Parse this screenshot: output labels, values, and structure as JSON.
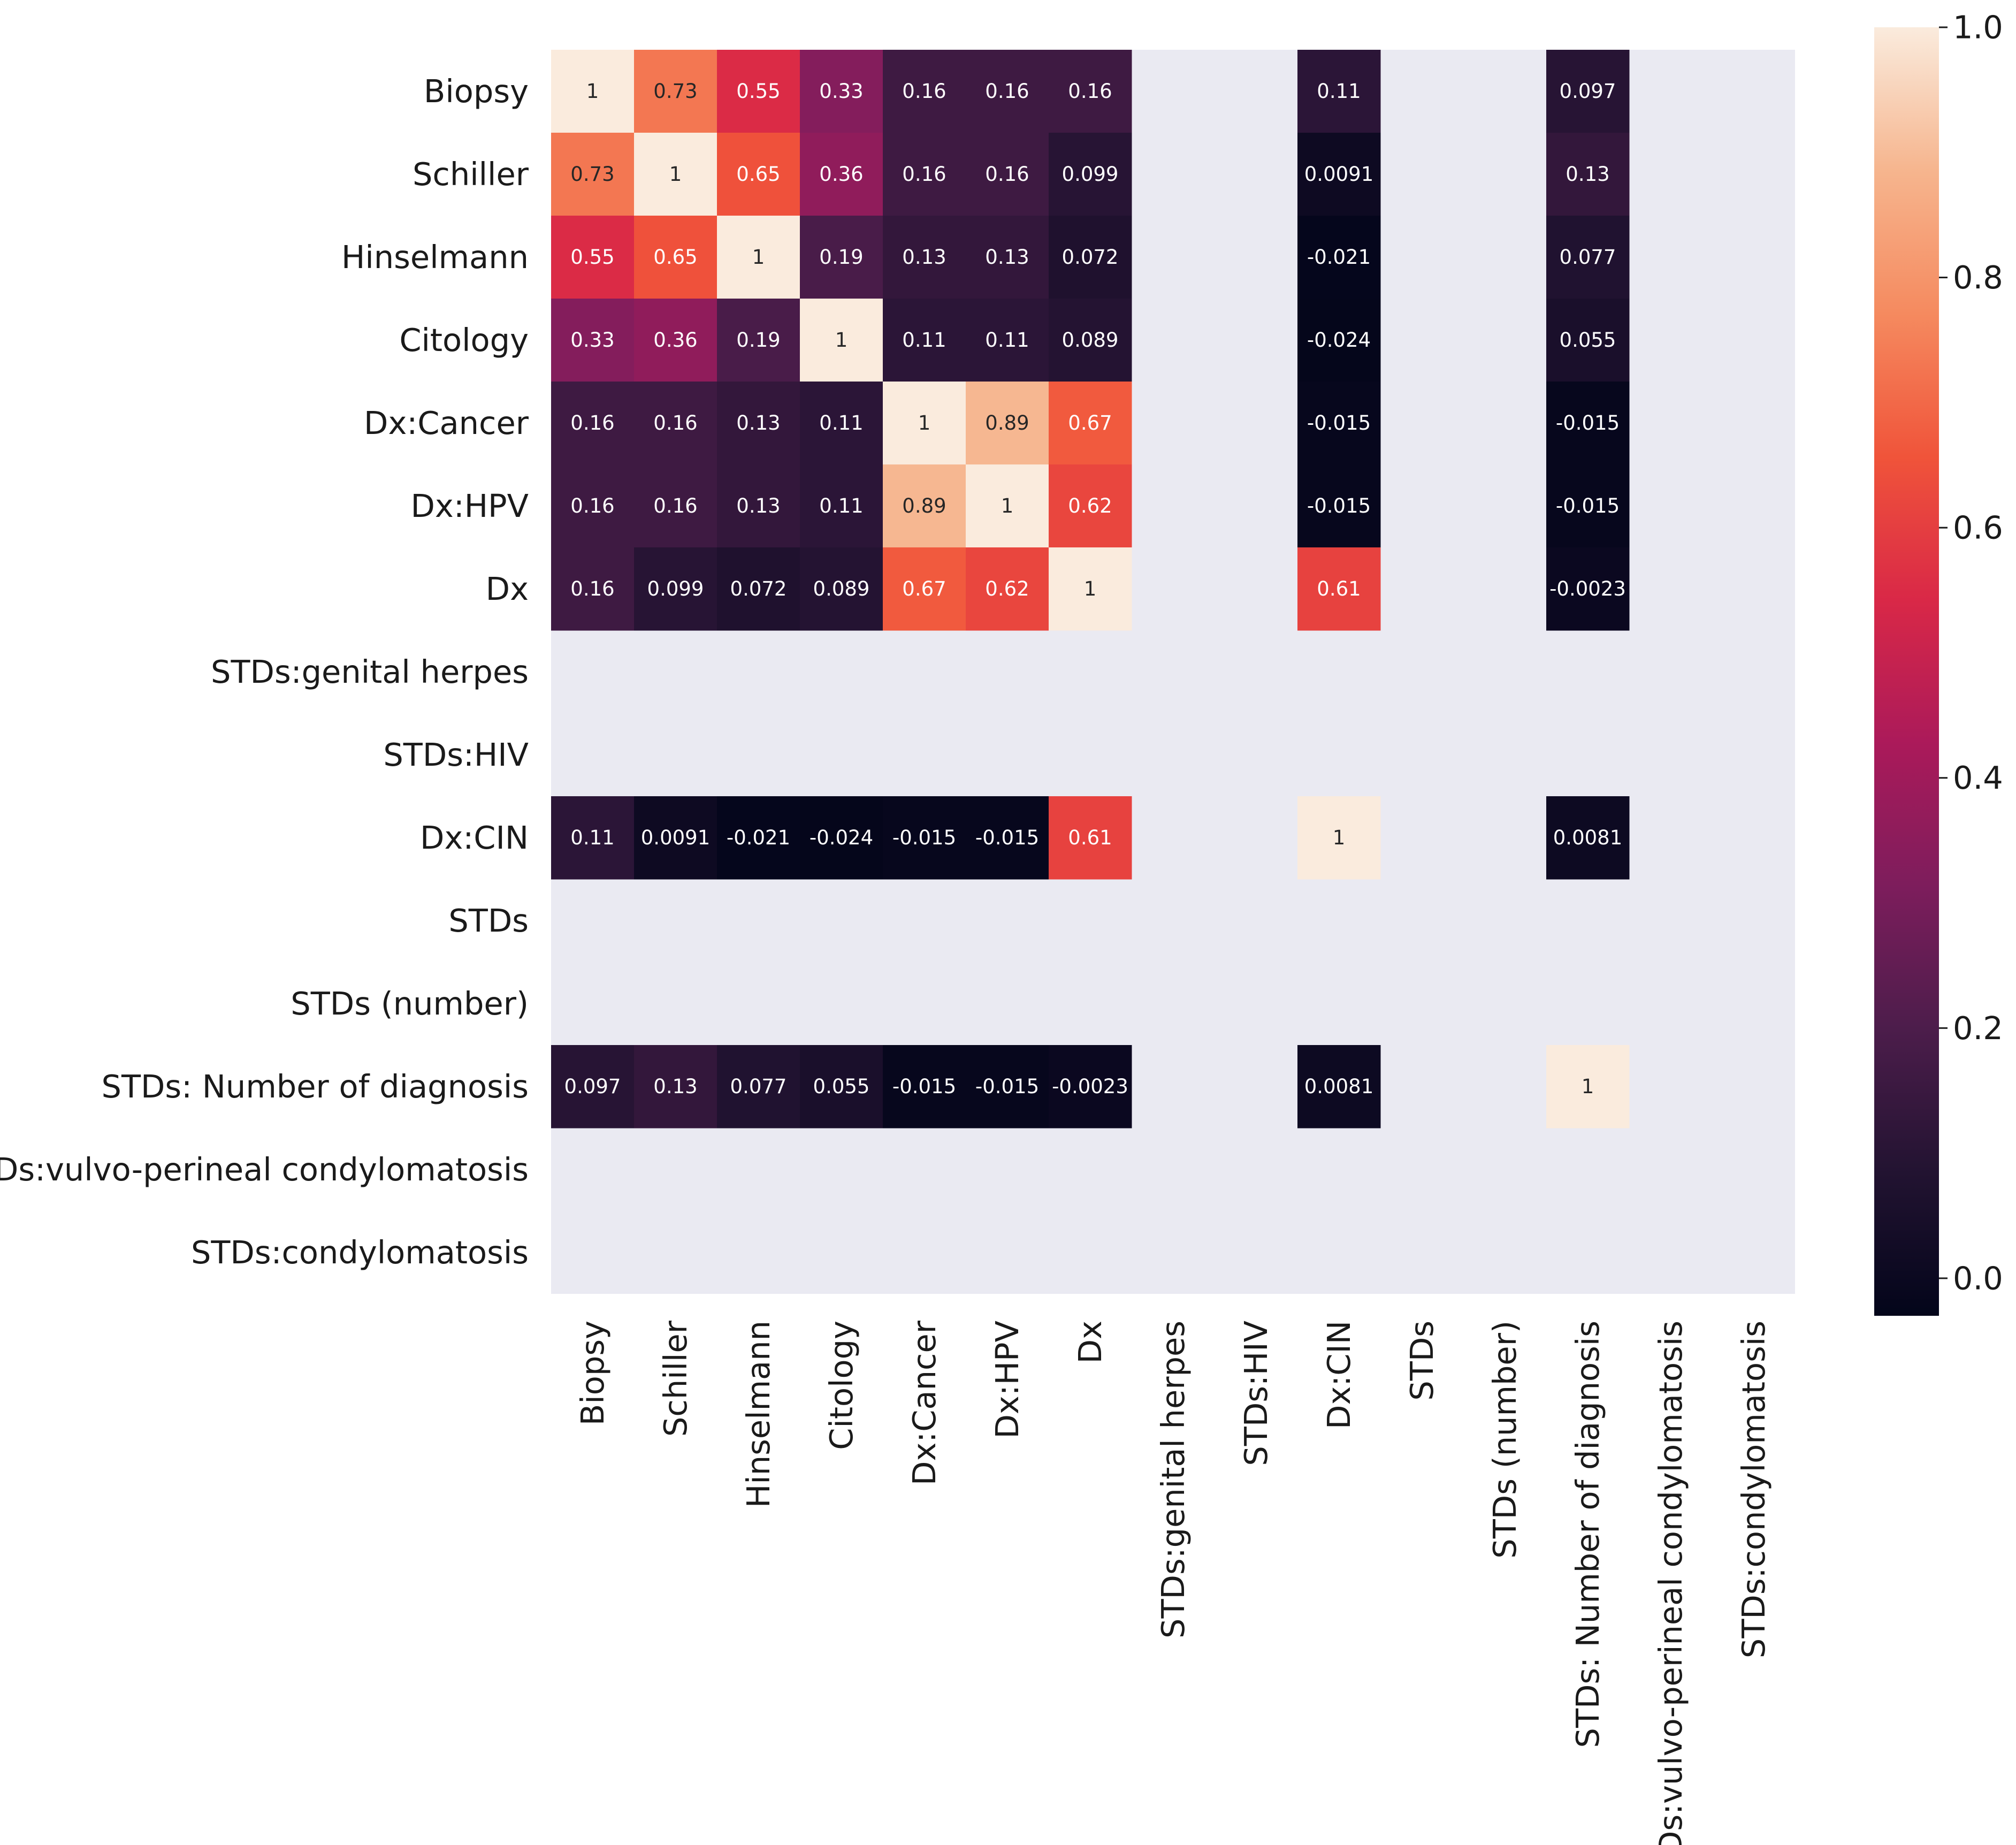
{
  "chart_data": {
    "type": "heatmap",
    "title": "",
    "xlabel": "",
    "ylabel": "",
    "labels": [
      "Biopsy",
      "Schiller",
      "Hinselmann",
      "Citology",
      "Dx:Cancer",
      "Dx:HPV",
      "Dx",
      "STDs:genital herpes",
      "STDs:HIV",
      "Dx:CIN",
      "STDs",
      "STDs (number)",
      "STDs: Number of diagnosis",
      "STDs:vulvo-perineal condylomatosis",
      "STDs:condylomatosis"
    ],
    "values": [
      [
        1,
        0.73,
        0.55,
        0.33,
        0.16,
        0.16,
        0.16,
        null,
        null,
        0.11,
        null,
        null,
        0.097,
        null,
        null
      ],
      [
        0.73,
        1,
        0.65,
        0.36,
        0.16,
        0.16,
        0.099,
        null,
        null,
        0.0091,
        null,
        null,
        0.13,
        null,
        null
      ],
      [
        0.55,
        0.65,
        1,
        0.19,
        0.13,
        0.13,
        0.072,
        null,
        null,
        -0.021,
        null,
        null,
        0.077,
        null,
        null
      ],
      [
        0.33,
        0.36,
        0.19,
        1,
        0.11,
        0.11,
        0.089,
        null,
        null,
        -0.024,
        null,
        null,
        0.055,
        null,
        null
      ],
      [
        0.16,
        0.16,
        0.13,
        0.11,
        1,
        0.89,
        0.67,
        null,
        null,
        -0.015,
        null,
        null,
        -0.015,
        null,
        null
      ],
      [
        0.16,
        0.16,
        0.13,
        0.11,
        0.89,
        1,
        0.62,
        null,
        null,
        -0.015,
        null,
        null,
        -0.015,
        null,
        null
      ],
      [
        0.16,
        0.099,
        0.072,
        0.089,
        0.67,
        0.62,
        1,
        null,
        null,
        0.61,
        null,
        null,
        -0.0023,
        null,
        null
      ],
      [
        null,
        null,
        null,
        null,
        null,
        null,
        null,
        null,
        null,
        null,
        null,
        null,
        null,
        null,
        null
      ],
      [
        null,
        null,
        null,
        null,
        null,
        null,
        null,
        null,
        null,
        null,
        null,
        null,
        null,
        null,
        null
      ],
      [
        0.11,
        0.0091,
        -0.021,
        -0.024,
        -0.015,
        -0.015,
        0.61,
        null,
        null,
        1,
        null,
        null,
        0.0081,
        null,
        null
      ],
      [
        null,
        null,
        null,
        null,
        null,
        null,
        null,
        null,
        null,
        null,
        null,
        null,
        null,
        null,
        null
      ],
      [
        null,
        null,
        null,
        null,
        null,
        null,
        null,
        null,
        null,
        null,
        null,
        null,
        null,
        null,
        null
      ],
      [
        0.097,
        0.13,
        0.077,
        0.055,
        -0.015,
        -0.015,
        -0.0023,
        null,
        null,
        0.0081,
        null,
        null,
        1,
        null,
        null
      ],
      [
        null,
        null,
        null,
        null,
        null,
        null,
        null,
        null,
        null,
        null,
        null,
        null,
        null,
        null,
        null
      ],
      [
        null,
        null,
        null,
        null,
        null,
        null,
        null,
        null,
        null,
        null,
        null,
        null,
        null,
        null,
        null
      ]
    ],
    "annotations": [
      [
        "1",
        "0.73",
        "0.55",
        "0.33",
        "0.16",
        "0.16",
        "0.16",
        "",
        "",
        "0.11",
        "",
        "",
        "0.097",
        "",
        ""
      ],
      [
        "0.73",
        "1",
        "0.65",
        "0.36",
        "0.16",
        "0.16",
        "0.099",
        "",
        "",
        "0.0091",
        "",
        "",
        "0.13",
        "",
        ""
      ],
      [
        "0.55",
        "0.65",
        "1",
        "0.19",
        "0.13",
        "0.13",
        "0.072",
        "",
        "",
        "-0.021",
        "",
        "",
        "0.077",
        "",
        ""
      ],
      [
        "0.33",
        "0.36",
        "0.19",
        "1",
        "0.11",
        "0.11",
        "0.089",
        "",
        "",
        "-0.024",
        "",
        "",
        "0.055",
        "",
        ""
      ],
      [
        "0.16",
        "0.16",
        "0.13",
        "0.11",
        "1",
        "0.89",
        "0.67",
        "",
        "",
        "-0.015",
        "",
        "",
        "-0.015",
        "",
        ""
      ],
      [
        "0.16",
        "0.16",
        "0.13",
        "0.11",
        "0.89",
        "1",
        "0.62",
        "",
        "",
        "-0.015",
        "",
        "",
        "-0.015",
        "",
        ""
      ],
      [
        "0.16",
        "0.099",
        "0.072",
        "0.089",
        "0.67",
        "0.62",
        "1",
        "",
        "",
        "0.61",
        "",
        "",
        "-0.0023",
        "",
        ""
      ],
      [
        "",
        "",
        "",
        "",
        "",
        "",
        "",
        "",
        "",
        "",
        "",
        "",
        "",
        "",
        ""
      ],
      [
        "",
        "",
        "",
        "",
        "",
        "",
        "",
        "",
        "",
        "",
        "",
        "",
        "",
        "",
        ""
      ],
      [
        "0.11",
        "0.0091",
        "-0.021",
        "-0.024",
        "-0.015",
        "-0.015",
        "0.61",
        "",
        "",
        "1",
        "",
        "",
        "0.0081",
        "",
        ""
      ],
      [
        "",
        "",
        "",
        "",
        "",
        "",
        "",
        "",
        "",
        "",
        "",
        "",
        "",
        "",
        ""
      ],
      [
        "",
        "",
        "",
        "",
        "",
        "",
        "",
        "",
        "",
        "",
        "",
        "",
        "",
        "",
        ""
      ],
      [
        "0.097",
        "0.13",
        "0.077",
        "0.055",
        "-0.015",
        "-0.015",
        "-0.0023",
        "",
        "",
        "0.0081",
        "",
        "",
        "1",
        "",
        ""
      ],
      [
        "",
        "",
        "",
        "",
        "",
        "",
        "",
        "",
        "",
        "",
        "",
        "",
        "",
        "",
        ""
      ],
      [
        "",
        "",
        "",
        "",
        "",
        "",
        "",
        "",
        "",
        "",
        "",
        "",
        "",
        "",
        ""
      ]
    ],
    "colorbar": {
      "range": [
        -0.03,
        1.0
      ],
      "ticks": [
        0.0,
        0.2,
        0.4,
        0.6,
        0.8,
        1.0
      ],
      "tick_labels": [
        "0.0",
        "0.2",
        "0.4",
        "0.6",
        "0.8",
        "1.0"
      ]
    },
    "colormap": [
      "#03051a",
      "#221331",
      "#4c1d4b",
      "#7d1d5c",
      "#ab1a5a",
      "#d92847",
      "#f0543a",
      "#f58a5f",
      "#f6b58e",
      "#faebdd"
    ],
    "missing_color": "#eaeaf2",
    "grid": false,
    "legend": "colorbar-right"
  }
}
